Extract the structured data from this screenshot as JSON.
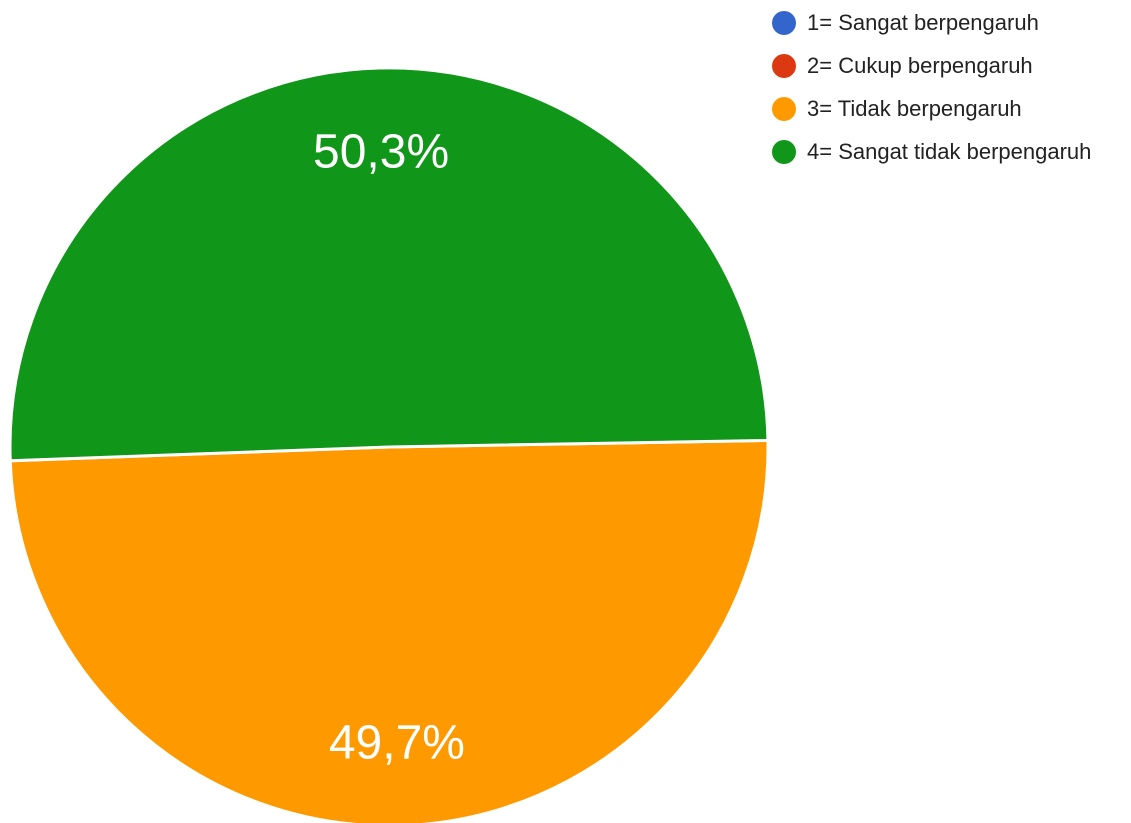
{
  "chart_data": {
    "type": "pie",
    "title": "",
    "categories": [
      "1= Sangat berpengaruh",
      "2= Cukup berpengaruh",
      "3= Tidak berpengaruh",
      "4= Sangat tidak berpengaruh"
    ],
    "values": [
      0,
      0,
      49.7,
      50.3
    ],
    "colors": [
      "#3366cc",
      "#dc3912",
      "#ff9900",
      "#109618"
    ],
    "data_labels": [
      "",
      "",
      "49,7%",
      "50,3%"
    ],
    "legend_position": "top-right",
    "start_angle_deg": -1
  }
}
